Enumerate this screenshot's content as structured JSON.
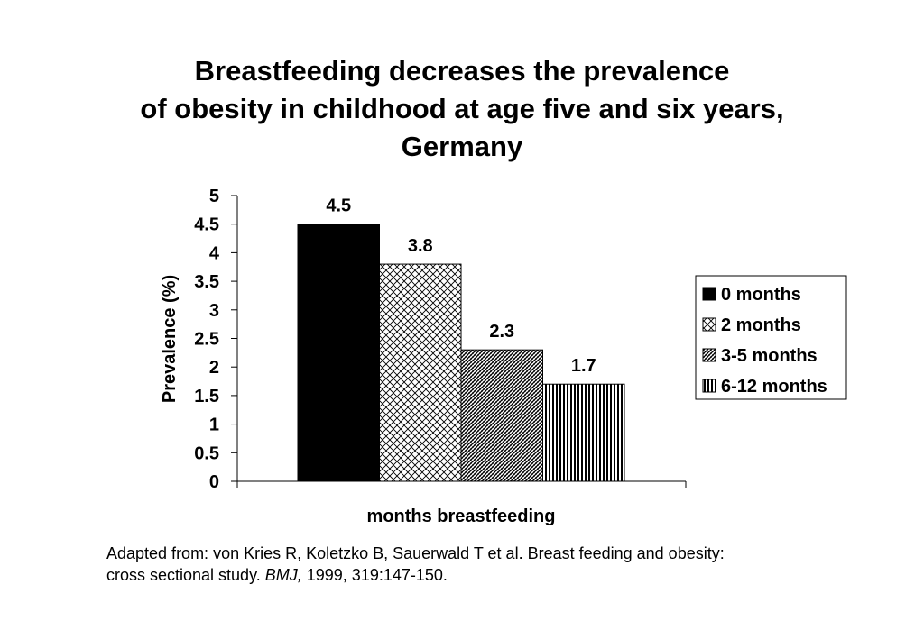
{
  "title": {
    "lines": [
      "Breastfeeding decreases the prevalence",
      "of obesity in childhood at age five and six years,",
      "Germany"
    ]
  },
  "chart_data": {
    "type": "bar",
    "title": "Breastfeeding decreases the prevalence of obesity in childhood at age five and six years, Germany",
    "xlabel": "months breastfeeding",
    "ylabel": "Prevalence (%)",
    "ylim": [
      0,
      5
    ],
    "yticks": [
      "0",
      "0.5",
      "1",
      "1.5",
      "2",
      "2.5",
      "3",
      "3.5",
      "4",
      "4.5",
      "5"
    ],
    "grid": false,
    "legend_position": "right",
    "series": [
      {
        "name": "0 months",
        "value": 4.5,
        "label": "4.5",
        "pattern": "solid"
      },
      {
        "name": "2 months",
        "value": 3.8,
        "label": "3.8",
        "pattern": "crosshatch"
      },
      {
        "name": "3-5 months",
        "value": 2.3,
        "label": "2.3",
        "pattern": "diagonal"
      },
      {
        "name": "6-12 months",
        "value": 1.7,
        "label": "1.7",
        "pattern": "vertical"
      }
    ]
  },
  "caption": {
    "line1": "Adapted from: von Kries R, Koletzko B, Sauerwald T et al. Breast feeding and obesity:",
    "line2_prefix": "cross sectional study. ",
    "line2_journal": "BMJ,",
    "line2_suffix": " 1999, 319:147-150."
  }
}
